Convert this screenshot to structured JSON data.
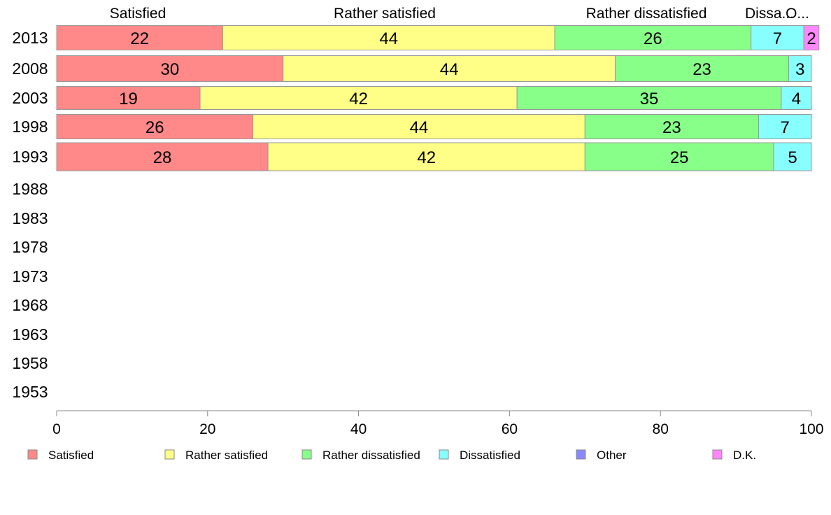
{
  "chart_data": {
    "type": "bar",
    "orientation": "horizontal",
    "stacked": true,
    "categories": [
      "2013",
      "2008",
      "2003",
      "1998",
      "1993",
      "1988",
      "1983",
      "1978",
      "1973",
      "1968",
      "1963",
      "1958",
      "1953"
    ],
    "series": [
      {
        "name": "Satisfied",
        "color": "#ff8888",
        "values": [
          22,
          30,
          19,
          26,
          28,
          null,
          null,
          null,
          null,
          null,
          null,
          null,
          null
        ]
      },
      {
        "name": "Rather satisfied",
        "color": "#ffff88",
        "values": [
          44,
          44,
          42,
          44,
          42,
          null,
          null,
          null,
          null,
          null,
          null,
          null,
          null
        ]
      },
      {
        "name": "Rather dissatisfied",
        "color": "#88ff88",
        "values": [
          26,
          23,
          35,
          23,
          25,
          null,
          null,
          null,
          null,
          null,
          null,
          null,
          null
        ]
      },
      {
        "name": "Dissatisfied",
        "color": "#88ffff",
        "values": [
          7,
          3,
          4,
          7,
          5,
          null,
          null,
          null,
          null,
          null,
          null,
          null,
          null
        ]
      },
      {
        "name": "Other",
        "color": "#8888ff",
        "values": [
          0,
          0,
          0,
          0,
          0,
          null,
          null,
          null,
          null,
          null,
          null,
          null,
          null
        ]
      },
      {
        "name": "D.K.",
        "color": "#ff88ff",
        "values": [
          2,
          0,
          0,
          0,
          0,
          null,
          null,
          null,
          null,
          null,
          null,
          null,
          null
        ]
      }
    ],
    "column_headers": [
      "Satisfied",
      "Rather satisfied",
      "Rather dissatisfied",
      "Dissa...",
      "O..."
    ],
    "x_ticks": [
      "0",
      "20",
      "40",
      "60",
      "80",
      "100"
    ],
    "xlim": [
      0,
      100
    ],
    "grid": false,
    "legend_position": "bottom",
    "title": "",
    "xlabel": "",
    "ylabel": ""
  }
}
